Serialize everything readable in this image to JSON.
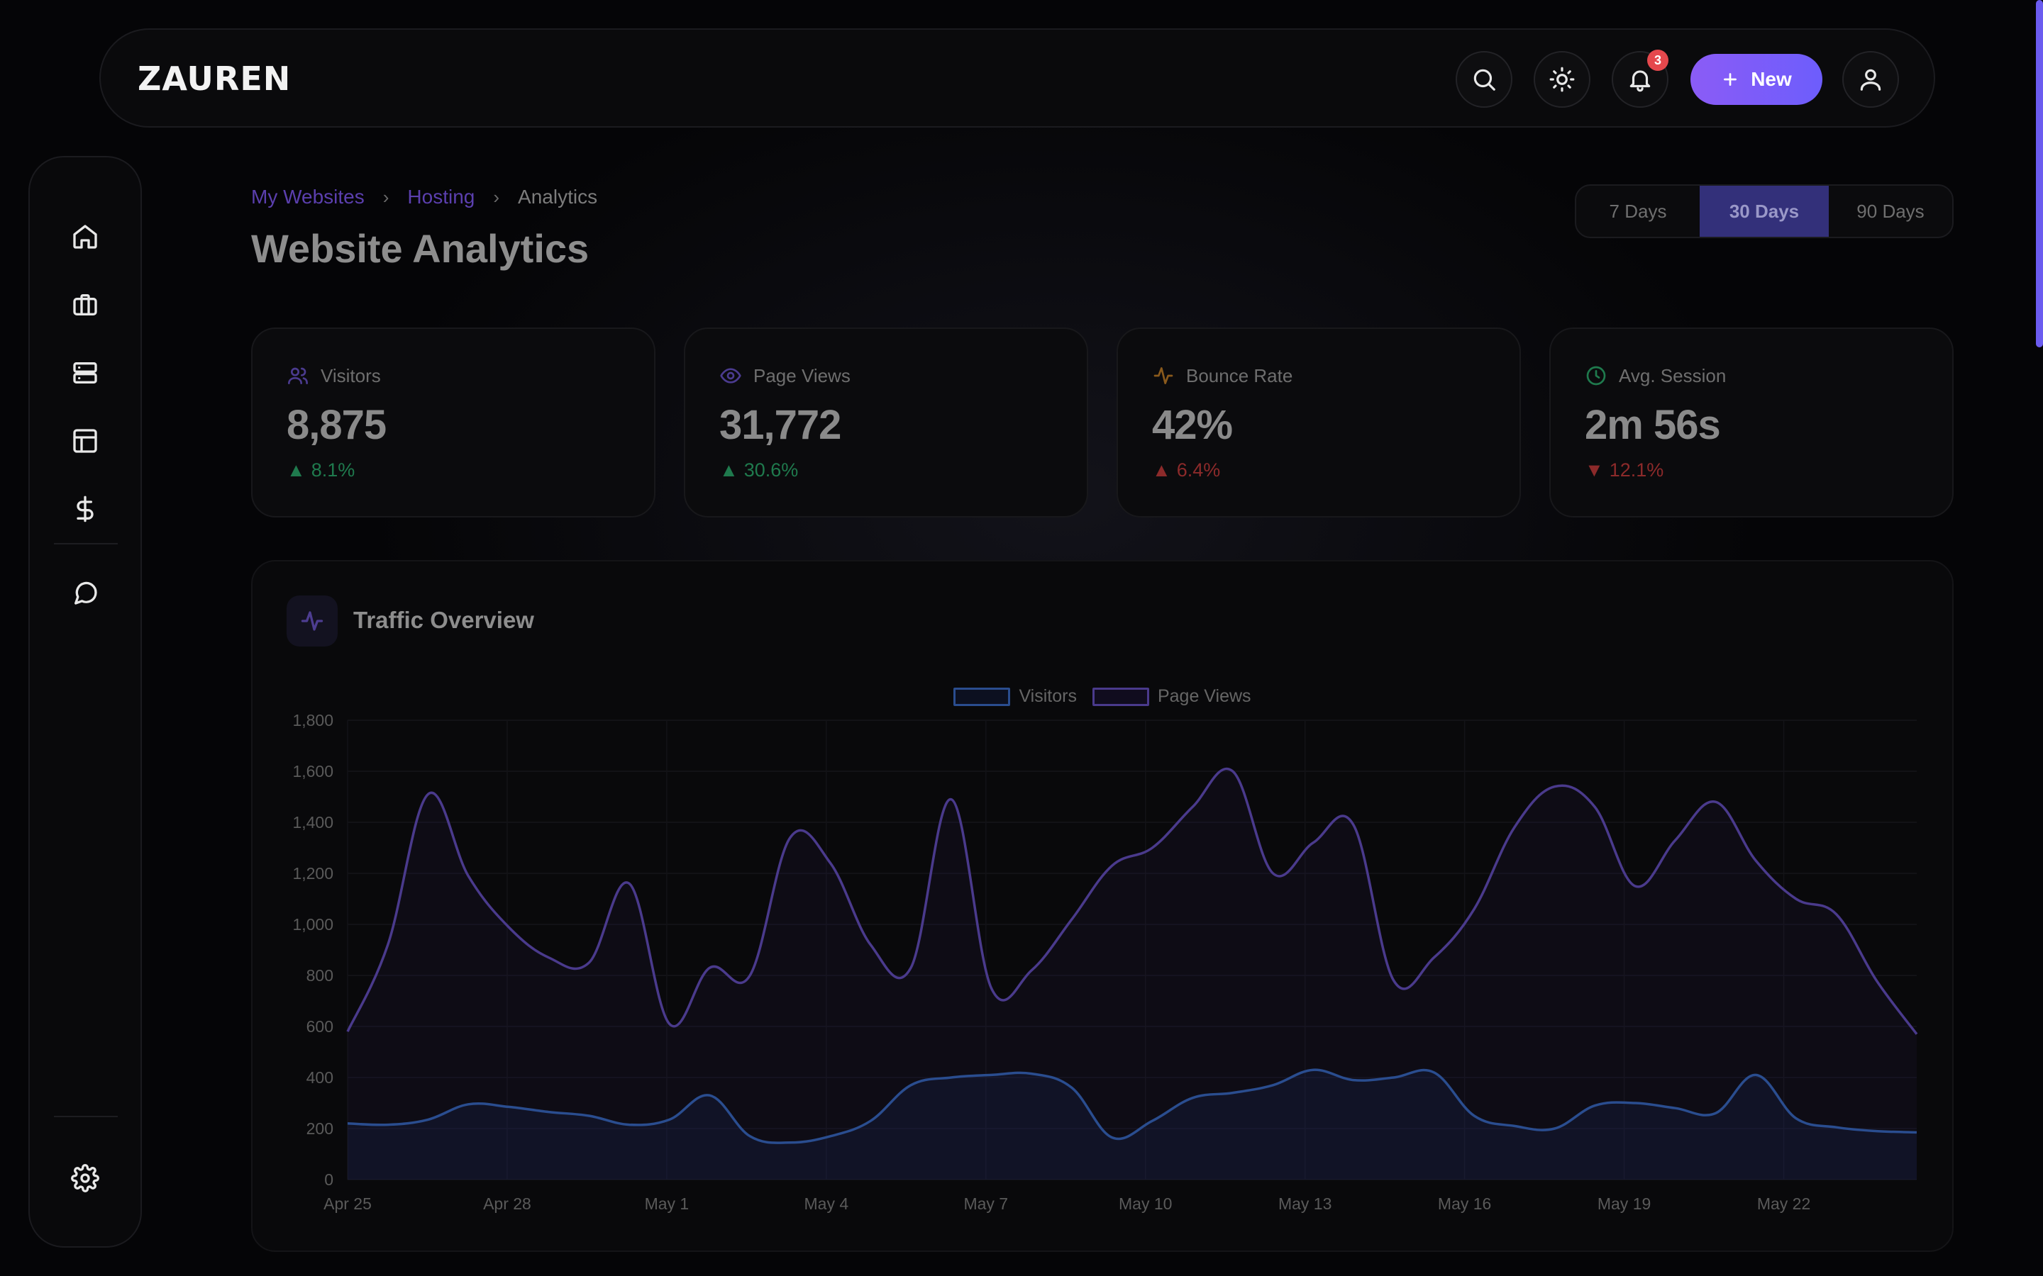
{
  "app": {
    "logo": "ZAUREN"
  },
  "topbar": {
    "notifications_count": "3",
    "new_label": "New"
  },
  "breadcrumb": {
    "items": [
      "My Websites",
      "Hosting",
      "Analytics"
    ],
    "separator": "›"
  },
  "page": {
    "title": "Website Analytics"
  },
  "range": {
    "options": [
      "7 Days",
      "30 Days",
      "90 Days"
    ],
    "selected": "30 Days"
  },
  "stats": [
    {
      "label": "Visitors",
      "value": "8,875",
      "delta": "8.1%",
      "direction": "up",
      "tone": "green",
      "icon": "users-icon",
      "icon_color": "#4b3b8f"
    },
    {
      "label": "Page Views",
      "value": "31,772",
      "delta": "30.6%",
      "direction": "up",
      "tone": "green",
      "icon": "eye-icon",
      "icon_color": "#4b3b8f"
    },
    {
      "label": "Bounce Rate",
      "value": "42%",
      "delta": "6.4%",
      "direction": "up",
      "tone": "red",
      "icon": "activity-icon",
      "icon_color": "#8a5a1c"
    },
    {
      "label": "Avg. Session",
      "value": "2m 56s",
      "delta": "12.1%",
      "direction": "down",
      "tone": "red",
      "icon": "clock-icon",
      "icon_color": "#1f7a4d"
    }
  ],
  "chart_panel": {
    "title": "Traffic Overview"
  },
  "chart_data": {
    "type": "line",
    "x_ticks": [
      "Apr 25",
      "Apr 28",
      "May 1",
      "May 4",
      "May 7",
      "May 10",
      "May 13",
      "May 16",
      "May 19",
      "May 22"
    ],
    "y_ticks": [
      "0",
      "200",
      "400",
      "600",
      "800",
      "1,000",
      "1,200",
      "1,400",
      "1,600",
      "1,800"
    ],
    "ylim": [
      0,
      1800
    ],
    "x_start": "Apr 25",
    "x_end": "May 24",
    "grid": true,
    "legend_position": "top-center",
    "series": [
      {
        "name": "Visitors",
        "color": "#2a4d8f",
        "values": [
          220,
          215,
          235,
          295,
          285,
          265,
          250,
          215,
          235,
          330,
          170,
          145,
          170,
          230,
          370,
          400,
          410,
          415,
          360,
          165,
          230,
          320,
          340,
          370,
          430,
          390,
          400,
          420,
          250,
          210,
          200,
          290,
          300,
          280,
          260,
          410,
          240,
          205,
          190,
          185
        ]
      },
      {
        "name": "Page Views",
        "color": "#4a3a8c",
        "values": [
          580,
          920,
          1510,
          1190,
          990,
          870,
          850,
          1160,
          610,
          830,
          800,
          1340,
          1240,
          920,
          830,
          1490,
          750,
          820,
          1020,
          1230,
          1300,
          1460,
          1600,
          1200,
          1320,
          1390,
          780,
          870,
          1060,
          1380,
          1540,
          1460,
          1150,
          1330,
          1480,
          1250,
          1100,
          1040,
          780,
          570
        ]
      }
    ]
  }
}
